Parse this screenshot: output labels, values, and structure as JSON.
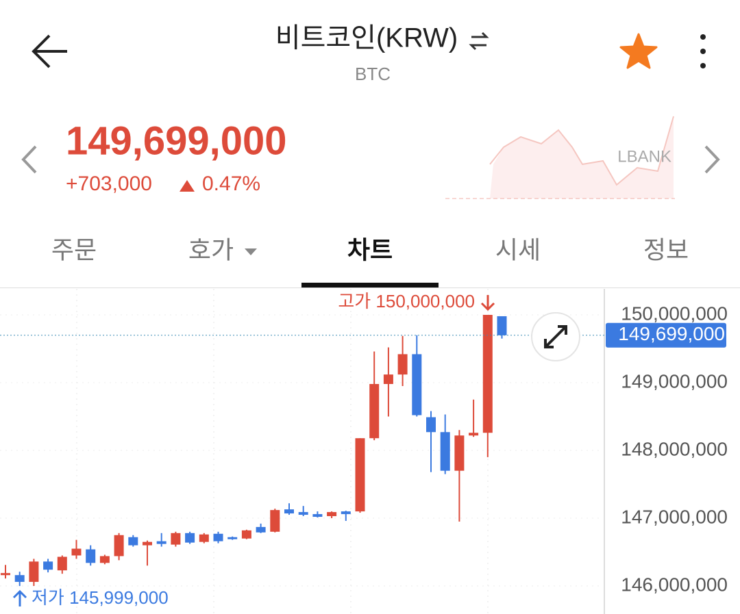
{
  "header": {
    "title": "비트코인(KRW)",
    "subtitle": "BTC"
  },
  "price": {
    "current": "149,699,000",
    "change": "+703,000",
    "change_rate": "0.47%",
    "exchange": "LBANK"
  },
  "tabs": [
    "주문",
    "호가",
    "차트",
    "시세",
    "정보"
  ],
  "chart_data": {
    "type": "candlestick",
    "open": [
      146160000,
      146160000,
      146060000,
      146360000,
      146230000,
      146450000,
      146540000,
      146340000,
      146440000,
      146720000,
      146600000,
      146660000,
      146610000,
      146780000,
      146650000,
      146770000,
      146720000,
      146700000,
      146870000,
      146800000,
      147130000,
      147090000,
      147060000,
      147030000,
      147100000,
      147100000,
      148180000,
      148980000,
      149120000,
      149420000,
      148490000,
      148270000,
      147700000,
      148220000,
      148260000,
      149980000
    ],
    "high": [
      146310000,
      146210000,
      146400000,
      146400000,
      146450000,
      146680000,
      146600000,
      146460000,
      146780000,
      146750000,
      146670000,
      146780000,
      146800000,
      146800000,
      146780000,
      146800000,
      146730000,
      146830000,
      146920000,
      147140000,
      147220000,
      147180000,
      147100000,
      147100000,
      147110000,
      148180000,
      149460000,
      149520000,
      149690000,
      149700000,
      148580000,
      148530000,
      148300000,
      148750000,
      150000000,
      149980000
    ],
    "low": [
      146110000,
      145999000,
      146000000,
      146200000,
      146180000,
      146400000,
      146300000,
      146320000,
      146380000,
      146580000,
      146300000,
      146580000,
      146580000,
      146620000,
      146630000,
      146630000,
      146680000,
      146690000,
      146780000,
      146790000,
      147050000,
      147030000,
      147010000,
      147000000,
      146960000,
      147080000,
      148150000,
      148500000,
      148950000,
      148500000,
      147680000,
      147650000,
      146950000,
      148200000,
      147900000,
      149650000
    ],
    "close": [
      146190000,
      146060000,
      146360000,
      146240000,
      146430000,
      146550000,
      146340000,
      146440000,
      146750000,
      146600000,
      146650000,
      146620000,
      146780000,
      146640000,
      146760000,
      146660000,
      146700000,
      146820000,
      146790000,
      147120000,
      147070000,
      147050000,
      147020000,
      147090000,
      147060000,
      148180000,
      148980000,
      149120000,
      149420000,
      148520000,
      148270000,
      147700000,
      148220000,
      148260000,
      150000000,
      149699000
    ],
    "ylim": [
      145586000,
      150404000
    ],
    "yticks": [
      {
        "value": 150000000,
        "label": "150,000,000"
      },
      {
        "value": 149000000,
        "label": "149,000,000"
      },
      {
        "value": 148000000,
        "label": "148,000,000"
      },
      {
        "value": 147000000,
        "label": "147,000,000"
      },
      {
        "value": 146000000,
        "label": "146,000,000"
      }
    ],
    "up_color": "#dd4b3a",
    "down_color": "#3b7ae0",
    "current_price": {
      "value": 149699000,
      "label": "149,699,000"
    },
    "annotations": {
      "high": "고가 150,000,000",
      "low": "저가 145,999,000"
    }
  }
}
